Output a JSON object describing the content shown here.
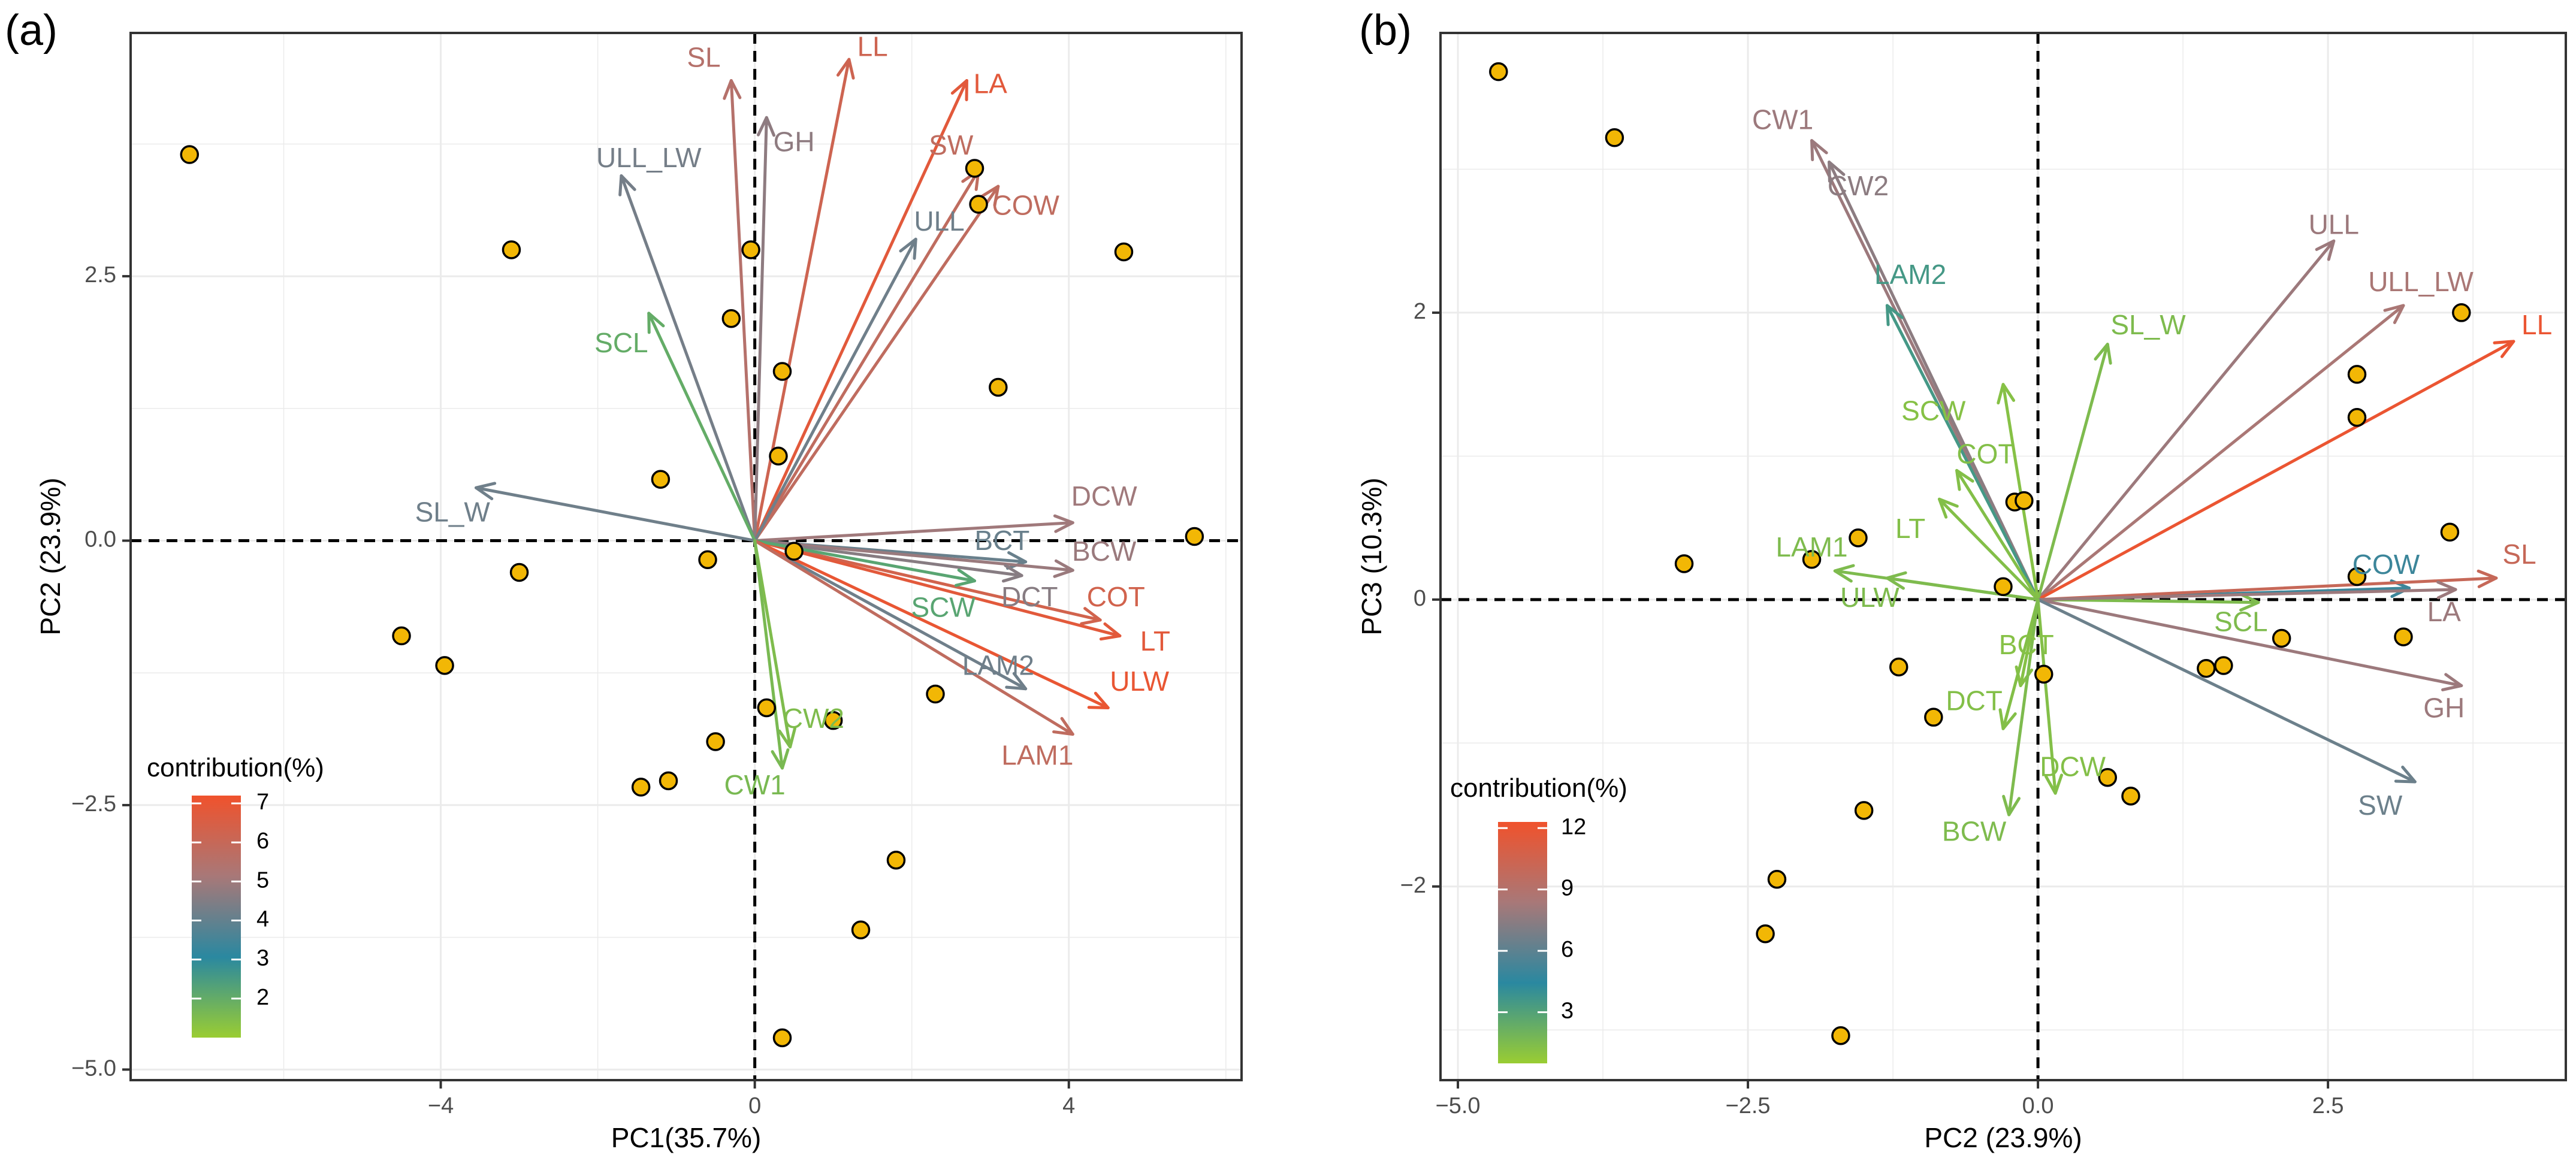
{
  "chart_data": [
    {
      "type": "scatter",
      "panel_label": "(a)",
      "xlabel": "PC1(35.7%)",
      "ylabel": "PC2 (23.9%)",
      "xlim": [
        -7.95,
        6.2
      ],
      "ylim": [
        -5.1,
        4.8
      ],
      "xticks": [
        -4,
        0,
        4
      ],
      "xtick_labels": [
        "−4",
        "0",
        "4"
      ],
      "yticks": [
        -5.0,
        -2.5,
        0.0,
        2.5
      ],
      "ytick_labels": [
        "−5.0",
        "−2.5",
        "0.0",
        "2.5"
      ],
      "legend": {
        "title": "contribution(%)",
        "min": 1.0,
        "max": 7.2,
        "ticks": [
          2,
          3,
          4,
          5,
          6,
          7
        ],
        "tick_labels": [
          "2",
          "3",
          "4",
          "5",
          "6",
          "7"
        ],
        "colormap": [
          "#9ACD32",
          "#2A88A0",
          "#A87878",
          "#F0522C"
        ],
        "placement": "bottom-left"
      },
      "points": [
        {
          "x": -7.2,
          "y": 3.65
        },
        {
          "x": -3.1,
          "y": 2.75
        },
        {
          "x": -0.3,
          "y": 2.1
        },
        {
          "x": -0.05,
          "y": 2.75
        },
        {
          "x": 0.35,
          "y": 1.6
        },
        {
          "x": 0.3,
          "y": 0.8
        },
        {
          "x": -1.2,
          "y": 0.58
        },
        {
          "x": -3.0,
          "y": -0.3
        },
        {
          "x": -0.6,
          "y": -0.18
        },
        {
          "x": 0.5,
          "y": -0.1
        },
        {
          "x": -4.5,
          "y": -0.9
        },
        {
          "x": -3.95,
          "y": -1.18
        },
        {
          "x": -0.5,
          "y": -1.9
        },
        {
          "x": 0.15,
          "y": -1.58
        },
        {
          "x": 1.0,
          "y": -1.7
        },
        {
          "x": 2.3,
          "y": -1.45
        },
        {
          "x": -1.45,
          "y": -2.33
        },
        {
          "x": -1.1,
          "y": -2.27
        },
        {
          "x": 1.8,
          "y": -3.02
        },
        {
          "x": 1.35,
          "y": -3.68
        },
        {
          "x": 0.35,
          "y": -4.7
        },
        {
          "x": 2.8,
          "y": 3.52
        },
        {
          "x": 2.85,
          "y": 3.18
        },
        {
          "x": 4.7,
          "y": 2.73
        },
        {
          "x": 3.1,
          "y": 1.45
        },
        {
          "x": 5.6,
          "y": 0.04
        }
      ],
      "arrows": [
        {
          "name": "SL",
          "x": -0.3,
          "y": 4.35,
          "c": 5.5,
          "lx": -0.65,
          "ly": 4.55
        },
        {
          "name": "LL",
          "x": 1.2,
          "y": 4.55,
          "c": 6.2,
          "lx": 1.5,
          "ly": 4.65
        },
        {
          "name": "GH",
          "x": 0.15,
          "y": 4.0,
          "c": 4.7,
          "lx": 0.5,
          "ly": 3.75
        },
        {
          "name": "ULL_LW",
          "x": -1.7,
          "y": 3.45,
          "c": 4.3,
          "lx": -1.35,
          "ly": 3.6
        },
        {
          "name": "LA",
          "x": 2.7,
          "y": 4.35,
          "c": 6.8,
          "lx": 3.0,
          "ly": 4.3
        },
        {
          "name": "SW",
          "x": 2.85,
          "y": 3.5,
          "c": 5.8,
          "lx": 2.5,
          "ly": 3.72
        },
        {
          "name": "COW",
          "x": 3.1,
          "y": 3.35,
          "c": 5.8,
          "lx": 3.45,
          "ly": 3.15
        },
        {
          "name": "ULL",
          "x": 2.05,
          "y": 2.85,
          "c": 4.2,
          "lx": 2.35,
          "ly": 3.0
        },
        {
          "name": "SCL",
          "x": -1.35,
          "y": 2.15,
          "c": 2.0,
          "lx": -1.7,
          "ly": 1.85
        },
        {
          "name": "SL_W",
          "x": -3.55,
          "y": 0.5,
          "c": 4.2,
          "lx": -3.85,
          "ly": 0.25
        },
        {
          "name": "DCW",
          "x": 4.05,
          "y": 0.17,
          "c": 5.0,
          "lx": 4.45,
          "ly": 0.4
        },
        {
          "name": "BCT",
          "x": 3.45,
          "y": -0.2,
          "c": 4.1,
          "lx": 3.15,
          "ly": -0.02
        },
        {
          "name": "BCW",
          "x": 4.05,
          "y": -0.28,
          "c": 4.9,
          "lx": 4.45,
          "ly": -0.12
        },
        {
          "name": "DCT",
          "x": 3.4,
          "y": -0.33,
          "c": 4.6,
          "lx": 3.5,
          "ly": -0.55
        },
        {
          "name": "COT",
          "x": 4.4,
          "y": -0.75,
          "c": 6.3,
          "lx": 4.6,
          "ly": -0.55
        },
        {
          "name": "LT",
          "x": 4.65,
          "y": -0.9,
          "c": 6.8,
          "lx": 5.1,
          "ly": -0.97
        },
        {
          "name": "SCW",
          "x": 2.8,
          "y": -0.38,
          "c": 2.2,
          "lx": 2.4,
          "ly": -0.65
        },
        {
          "name": "LAM2",
          "x": 3.45,
          "y": -1.4,
          "c": 4.2,
          "lx": 3.1,
          "ly": -1.2
        },
        {
          "name": "ULW",
          "x": 4.5,
          "y": -1.58,
          "c": 7.0,
          "lx": 4.9,
          "ly": -1.35
        },
        {
          "name": "LAM1",
          "x": 4.05,
          "y": -1.83,
          "c": 5.8,
          "lx": 3.6,
          "ly": -2.05
        },
        {
          "name": "CW2",
          "x": 0.45,
          "y": -1.95,
          "c": 1.5,
          "lx": 0.75,
          "ly": -1.7
        },
        {
          "name": "CW1",
          "x": 0.35,
          "y": -2.15,
          "c": 1.6,
          "lx": 0.0,
          "ly": -2.33
        }
      ]
    },
    {
      "type": "scatter",
      "panel_label": "(b)",
      "xlabel": "PC2 (23.9%)",
      "ylabel": "PC3 (10.3%)",
      "xlim": [
        -5.15,
        4.55
      ],
      "ylim": [
        -3.35,
        3.95
      ],
      "xticks": [
        -5.0,
        -2.5,
        0.0,
        2.5
      ],
      "xtick_labels": [
        "−5.0",
        "−2.5",
        "0.0",
        "2.5"
      ],
      "yticks": [
        -2,
        0,
        2
      ],
      "ytick_labels": [
        "−2",
        "0",
        "2"
      ],
      "legend": {
        "title": "contribution(%)",
        "min": 0.5,
        "max": 12.3,
        "ticks": [
          3,
          6,
          9,
          12
        ],
        "tick_labels": [
          "3",
          "6",
          "9",
          "12"
        ],
        "colormap": [
          "#9ACD32",
          "#2A88A0",
          "#A87878",
          "#F0522C"
        ],
        "placement": "bottom-left"
      },
      "points": [
        {
          "x": -4.65,
          "y": 3.68
        },
        {
          "x": -3.65,
          "y": 3.22
        },
        {
          "x": -3.05,
          "y": 0.25
        },
        {
          "x": -1.95,
          "y": 0.28
        },
        {
          "x": -1.55,
          "y": 0.43
        },
        {
          "x": -1.2,
          "y": -0.47
        },
        {
          "x": -0.9,
          "y": -0.82
        },
        {
          "x": -1.5,
          "y": -1.47
        },
        {
          "x": -2.25,
          "y": -1.95
        },
        {
          "x": -2.35,
          "y": -2.33
        },
        {
          "x": -1.7,
          "y": -3.04
        },
        {
          "x": -0.2,
          "y": 0.68
        },
        {
          "x": -0.12,
          "y": 0.69
        },
        {
          "x": -0.3,
          "y": 0.09
        },
        {
          "x": 0.05,
          "y": -0.52
        },
        {
          "x": 0.6,
          "y": -1.24
        },
        {
          "x": 0.8,
          "y": -1.37
        },
        {
          "x": 1.45,
          "y": -0.48
        },
        {
          "x": 1.6,
          "y": -0.46
        },
        {
          "x": 2.1,
          "y": -0.27
        },
        {
          "x": 2.75,
          "y": 1.57
        },
        {
          "x": 2.75,
          "y": 1.27
        },
        {
          "x": 2.75,
          "y": 0.16
        },
        {
          "x": 3.15,
          "y": -0.26
        },
        {
          "x": 3.55,
          "y": 0.47
        },
        {
          "x": 3.65,
          "y": 2.0
        }
      ],
      "arrows": [
        {
          "name": "CW1",
          "x": -1.95,
          "y": 3.2,
          "c": 8.0,
          "lx": -2.2,
          "ly": 3.33
        },
        {
          "name": "CW2",
          "x": -1.8,
          "y": 3.05,
          "c": 7.5,
          "lx": -1.55,
          "ly": 2.87
        },
        {
          "name": "LAM2",
          "x": -1.3,
          "y": 2.05,
          "c": 3.5,
          "lx": -1.1,
          "ly": 2.25
        },
        {
          "name": "ULL",
          "x": 2.55,
          "y": 2.5,
          "c": 8.0,
          "lx": 2.55,
          "ly": 2.6
        },
        {
          "name": "ULL_LW",
          "x": 3.15,
          "y": 2.05,
          "c": 8.5,
          "lx": 3.3,
          "ly": 2.2
        },
        {
          "name": "LL",
          "x": 4.1,
          "y": 1.8,
          "c": 12.0,
          "lx": 4.3,
          "ly": 1.9
        },
        {
          "name": "SL_W",
          "x": 0.6,
          "y": 1.78,
          "c": 1.5,
          "lx": 0.95,
          "ly": 1.9
        },
        {
          "name": "SCW",
          "x": -0.3,
          "y": 1.5,
          "c": 1.2,
          "lx": -0.9,
          "ly": 1.3
        },
        {
          "name": "COT",
          "x": -0.7,
          "y": 0.9,
          "c": 1.3,
          "lx": -0.45,
          "ly": 1.0
        },
        {
          "name": "LT",
          "x": -0.85,
          "y": 0.7,
          "c": 1.3,
          "lx": -1.1,
          "ly": 0.48
        },
        {
          "name": "LAM1",
          "x": -1.75,
          "y": 0.2,
          "c": 1.5,
          "lx": -1.95,
          "ly": 0.35
        },
        {
          "name": "ULW",
          "x": -1.3,
          "y": 0.15,
          "c": 1.5,
          "lx": -1.45,
          "ly": 0.0
        },
        {
          "name": "COW",
          "x": 3.2,
          "y": 0.08,
          "c": 5.0,
          "lx": 3.0,
          "ly": 0.23
        },
        {
          "name": "SL",
          "x": 3.95,
          "y": 0.15,
          "c": 10.0,
          "lx": 4.15,
          "ly": 0.3
        },
        {
          "name": "SCL",
          "x": 1.9,
          "y": -0.02,
          "c": 1.5,
          "lx": 1.75,
          "ly": -0.17
        },
        {
          "name": "LA",
          "x": 3.6,
          "y": 0.07,
          "c": 8.0,
          "lx": 3.5,
          "ly": -0.1
        },
        {
          "name": "GH",
          "x": 3.65,
          "y": -0.6,
          "c": 8.0,
          "lx": 3.5,
          "ly": -0.77
        },
        {
          "name": "SW",
          "x": 3.25,
          "y": -1.27,
          "c": 6.5,
          "lx": 2.95,
          "ly": -1.45
        },
        {
          "name": "BCT",
          "x": -0.15,
          "y": -0.6,
          "c": 1.2,
          "lx": -0.1,
          "ly": -0.33
        },
        {
          "name": "DCT",
          "x": -0.3,
          "y": -0.9,
          "c": 1.3,
          "lx": -0.55,
          "ly": -0.72
        },
        {
          "name": "DCW",
          "x": 0.15,
          "y": -1.35,
          "c": 1.3,
          "lx": 0.3,
          "ly": -1.18
        },
        {
          "name": "BCW",
          "x": -0.25,
          "y": -1.5,
          "c": 1.5,
          "lx": -0.55,
          "ly": -1.63
        }
      ]
    }
  ]
}
